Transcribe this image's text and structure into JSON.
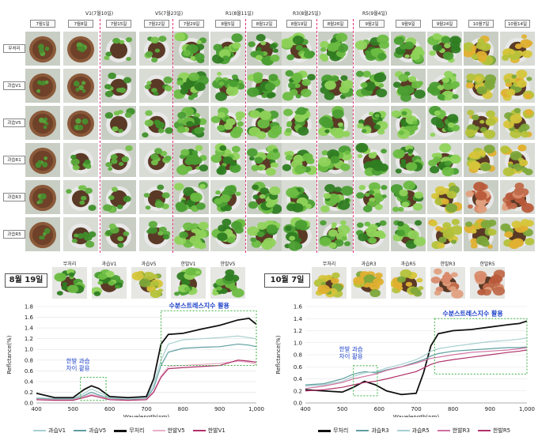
{
  "grid": {
    "dates": [
      "7월1일",
      "7월8일",
      "7월15일",
      "7월22일",
      "7월29일",
      "8월5일",
      "8월12일",
      "8월19일",
      "8월26일",
      "9월2일",
      "9월9일",
      "9월24일",
      "10월7일",
      "10월14일"
    ],
    "stages": [
      "V1(7월10일)",
      "V5(7월23일)",
      "R1(8월11일)",
      "R3(8월25일)",
      "R5(9월4일)"
    ],
    "rows": [
      "무처리",
      "과습V1",
      "과습V5",
      "과습R1",
      "과습R3",
      "과습R5"
    ]
  },
  "panel_left": {
    "date_label": "8월 19일",
    "thumb_labels": [
      "무처리",
      "과습V1",
      "과습V5",
      "한발V1",
      "한발V5"
    ],
    "annotation_main": "수분스트레스지수 활용",
    "annotation_small": "한발 과습\n차이 활용"
  },
  "panel_right": {
    "date_label": "10월 7일",
    "thumb_labels": [
      "무처리",
      "과습R3",
      "과습R5",
      "한발R3",
      "한발R5"
    ],
    "annotation_main": "수분스트레스지수 활용",
    "annotation_small": "한발 과습\n차이 활용"
  },
  "colors": {
    "black": "#111111",
    "teal": "#5f9ea0",
    "lightteal": "#a8cfd0",
    "pink": "#d070a0",
    "lightpink": "#e8b0c8",
    "magenta": "#b0306a",
    "box": "#3cb043",
    "annot": "#1a3fc9",
    "stage_line": "#e0307a"
  },
  "chart_data": [
    {
      "type": "line",
      "title": "",
      "xlabel": "Wavelength(nm)",
      "ylabel": "Reflctance(%)",
      "xlim": [
        400,
        1000
      ],
      "ylim": [
        0,
        1.8
      ],
      "x_ticks": [
        "400",
        "500",
        "600",
        "700",
        "800",
        "900",
        "1,000"
      ],
      "y_ticks": [
        "0.0",
        "0.2",
        "0.4",
        "0.6",
        "0.8",
        "1.0",
        "1.2",
        "1.4",
        "1.6",
        "1.8"
      ],
      "x": [
        400,
        450,
        500,
        530,
        550,
        570,
        600,
        650,
        700,
        720,
        740,
        760,
        800,
        850,
        900,
        950,
        980,
        1000
      ],
      "series": [
        {
          "name": "과습V1",
          "color": "#a8cfd0",
          "values": [
            0.1,
            0.08,
            0.08,
            0.18,
            0.26,
            0.2,
            0.1,
            0.08,
            0.1,
            0.35,
            0.8,
            1.1,
            1.18,
            1.2,
            1.22,
            1.25,
            1.22,
            1.2
          ]
        },
        {
          "name": "과습V5",
          "color": "#5f9ea0",
          "values": [
            0.08,
            0.07,
            0.07,
            0.14,
            0.2,
            0.15,
            0.08,
            0.06,
            0.08,
            0.28,
            0.7,
            0.95,
            1.02,
            1.04,
            1.05,
            1.1,
            1.08,
            1.05
          ]
        },
        {
          "name": "무처리",
          "color": "#111111",
          "values": [
            0.18,
            0.1,
            0.1,
            0.25,
            0.32,
            0.27,
            0.12,
            0.1,
            0.12,
            0.45,
            1.1,
            1.28,
            1.3,
            1.38,
            1.45,
            1.55,
            1.58,
            1.47
          ]
        },
        {
          "name": "한발V5",
          "color": "#e8b0c8",
          "values": [
            0.07,
            0.06,
            0.06,
            0.12,
            0.16,
            0.13,
            0.07,
            0.05,
            0.07,
            0.22,
            0.5,
            0.68,
            0.7,
            0.72,
            0.74,
            0.78,
            0.76,
            0.72
          ]
        },
        {
          "name": "한발V1",
          "color": "#b0306a",
          "values": [
            0.06,
            0.05,
            0.05,
            0.1,
            0.14,
            0.11,
            0.06,
            0.05,
            0.06,
            0.2,
            0.48,
            0.64,
            0.66,
            0.68,
            0.7,
            0.8,
            0.78,
            0.76
          ]
        }
      ]
    },
    {
      "type": "line",
      "title": "",
      "xlabel": "Wavelength(nm)",
      "ylabel": "Reflctance(%)",
      "xlim": [
        400,
        1000
      ],
      "ylim": [
        0,
        1.6
      ],
      "x_ticks": [
        "400",
        "500",
        "600",
        "700",
        "800",
        "900",
        "1,000"
      ],
      "y_ticks": [
        "0.0",
        "0.2",
        "0.4",
        "0.6",
        "0.8",
        "1.0",
        "1.2",
        "1.4",
        "1.6"
      ],
      "x": [
        400,
        450,
        500,
        530,
        560,
        590,
        620,
        660,
        700,
        720,
        740,
        760,
        800,
        850,
        900,
        950,
        980,
        1000
      ],
      "series": [
        {
          "name": "무처리",
          "color": "#111111",
          "values": [
            0.22,
            0.2,
            0.18,
            0.26,
            0.36,
            0.3,
            0.2,
            0.14,
            0.16,
            0.5,
            0.95,
            1.15,
            1.2,
            1.22,
            1.26,
            1.3,
            1.32,
            1.36
          ]
        },
        {
          "name": "과습R3",
          "color": "#5f9ea0",
          "values": [
            0.3,
            0.32,
            0.4,
            0.48,
            0.52,
            0.5,
            0.55,
            0.6,
            0.68,
            0.72,
            0.78,
            0.82,
            0.86,
            0.88,
            0.9,
            0.92,
            0.92,
            0.93
          ]
        },
        {
          "name": "과습R5",
          "color": "#a8cfd0",
          "values": [
            0.28,
            0.3,
            0.36,
            0.44,
            0.5,
            0.52,
            0.58,
            0.64,
            0.72,
            0.78,
            0.86,
            0.9,
            0.94,
            0.98,
            1.02,
            1.04,
            1.06,
            1.08
          ]
        },
        {
          "name": "한발R3",
          "color": "#d070a0",
          "values": [
            0.24,
            0.28,
            0.34,
            0.4,
            0.44,
            0.48,
            0.54,
            0.6,
            0.66,
            0.7,
            0.74,
            0.76,
            0.8,
            0.84,
            0.86,
            0.88,
            0.9,
            0.92
          ]
        },
        {
          "name": "한발R5",
          "color": "#b0306a",
          "values": [
            0.2,
            0.22,
            0.26,
            0.3,
            0.34,
            0.36,
            0.4,
            0.46,
            0.52,
            0.58,
            0.64,
            0.68,
            0.72,
            0.76,
            0.8,
            0.84,
            0.86,
            0.88
          ]
        }
      ]
    }
  ]
}
